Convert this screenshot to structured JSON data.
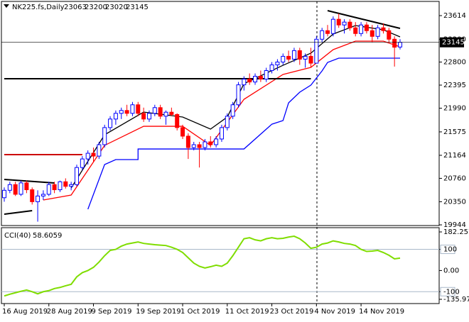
{
  "chart_data": [
    {
      "type": "candlestick",
      "title": "NK225.fs,Daily",
      "categories": [
        "16 Aug 2019",
        null,
        null,
        null,
        null,
        null,
        null,
        null,
        "28 Aug 2019",
        null,
        null,
        null,
        null,
        null,
        null,
        null,
        "9 Sep 2019",
        null,
        null,
        null,
        null,
        null,
        null,
        null,
        "19 Sep 2019",
        null,
        null,
        null,
        null,
        null,
        null,
        null,
        "1 Oct 2019",
        null,
        null,
        null,
        null,
        null,
        null,
        null,
        "11 Oct 2019",
        null,
        null,
        null,
        null,
        null,
        null,
        null,
        "23 Oct 2019",
        null,
        null,
        null,
        null,
        null,
        null,
        null,
        "4 Nov 2019",
        null,
        null,
        null,
        null,
        null,
        null,
        null,
        "14 Nov 2019",
        null,
        null,
        null,
        null,
        null,
        null,
        null
      ],
      "open": [
        20420,
        20550,
        20650,
        20480,
        20680,
        20560,
        20350,
        20450,
        20480,
        20650,
        20560,
        20700,
        20620,
        20650,
        20950,
        21100,
        21200,
        21150,
        21350,
        21650,
        21800,
        21900,
        21950,
        21900,
        22050,
        21900,
        21800,
        21900,
        22000,
        21850,
        21920,
        21880,
        21650,
        21500,
        21300,
        21350,
        21300,
        21400,
        21350,
        21450,
        21650,
        21850,
        22050,
        22400,
        22500,
        22450,
        22550,
        22500,
        22650,
        22750,
        22800,
        22900,
        22850,
        23000,
        22850,
        22900,
        22780,
        23200,
        23350,
        23300,
        23550,
        23450,
        23500,
        23400,
        23300,
        23450,
        23350,
        23250,
        23400,
        23350,
        23200,
        23063
      ],
      "high": [
        20600,
        20700,
        20700,
        20720,
        20720,
        20600,
        20550,
        20550,
        20700,
        20700,
        20720,
        20760,
        20700,
        21000,
        21150,
        21250,
        21300,
        21400,
        21700,
        21850,
        21950,
        22000,
        22050,
        22100,
        22100,
        22000,
        21950,
        22050,
        22050,
        21950,
        22000,
        21900,
        21700,
        21550,
        21400,
        21400,
        21450,
        21500,
        21500,
        21700,
        21900,
        22100,
        22450,
        22550,
        22600,
        22600,
        22650,
        22700,
        22800,
        22850,
        22950,
        23000,
        23050,
        23050,
        22950,
        23050,
        23250,
        23400,
        23450,
        23600,
        23650,
        23550,
        23550,
        23500,
        23500,
        23500,
        23450,
        23450,
        23480,
        23400,
        23250,
        23200
      ],
      "low": [
        20350,
        20500,
        20450,
        20450,
        20500,
        20300,
        20000,
        20380,
        20450,
        20500,
        20520,
        20580,
        20550,
        20620,
        20900,
        21000,
        21050,
        21100,
        21300,
        21600,
        21700,
        21800,
        21850,
        21850,
        21850,
        21750,
        21750,
        21850,
        21800,
        21700,
        21850,
        21600,
        21450,
        21100,
        21250,
        20950,
        21250,
        21300,
        21300,
        21400,
        21600,
        21800,
        22000,
        22300,
        22400,
        22400,
        22450,
        22450,
        22600,
        22650,
        22750,
        22800,
        22800,
        22750,
        22700,
        22700,
        22780,
        23150,
        23250,
        23250,
        23400,
        23300,
        23350,
        23250,
        23250,
        23300,
        23150,
        23200,
        23300,
        23150,
        22720,
        23020
      ],
      "close": [
        20550,
        20650,
        20480,
        20680,
        20560,
        20350,
        20450,
        20480,
        20650,
        20560,
        20700,
        20620,
        20650,
        20950,
        21100,
        21200,
        21150,
        21350,
        21650,
        21800,
        21900,
        21950,
        21900,
        22050,
        21900,
        21800,
        21900,
        22000,
        21850,
        21920,
        21880,
        21650,
        21500,
        21300,
        21350,
        21300,
        21400,
        21350,
        21450,
        21650,
        21850,
        22050,
        22400,
        22500,
        22450,
        22550,
        22500,
        22650,
        22750,
        22800,
        22900,
        22850,
        23000,
        22850,
        22900,
        22780,
        23200,
        23350,
        23300,
        23550,
        23450,
        23500,
        23400,
        23300,
        23450,
        23350,
        23250,
        23400,
        23350,
        23200,
        23060,
        23145
      ],
      "up_color": "#0000ff",
      "down_color": "#ff0000",
      "overlays": [
        {
          "color": "#000000",
          "x": [
            12,
            18,
            25,
            32,
            37,
            40,
            43,
            50,
            55,
            59,
            63,
            68,
            71
          ],
          "values": [
            20591,
            21524,
            21922,
            21835,
            21624,
            21835,
            22420,
            22743,
            22955,
            23291,
            23440,
            23365,
            23241
          ]
        },
        {
          "color": "#ff0000",
          "x": [
            7,
            12,
            18,
            25,
            32,
            37,
            43,
            50,
            55,
            59,
            63,
            68,
            71
          ],
          "values": [
            20380,
            20467,
            21338,
            21673,
            21673,
            21338,
            22146,
            22582,
            22706,
            23017,
            23166,
            23166,
            23067
          ]
        },
        {
          "color": "#0000ff",
          "x": [
            15,
            18,
            20,
            24,
            24,
            43,
            48,
            50,
            51,
            53,
            55,
            57,
            58,
            60,
            71
          ],
          "values": [
            20218,
            21002,
            21089,
            21089,
            21275,
            21275,
            21710,
            21773,
            22084,
            22271,
            22395,
            22644,
            22793,
            22868,
            22868
          ]
        }
      ],
      "trendlines": [
        {
          "color": "#000000",
          "x": [
            58,
            71
          ],
          "values": [
            23701,
            23390
          ]
        },
        {
          "color": "#000000",
          "x": [
            0,
            55
          ],
          "values": [
            22507,
            22507
          ]
        },
        {
          "color": "#cc0000",
          "x": [
            0,
            14
          ],
          "values": [
            21176,
            21176
          ]
        },
        {
          "color": "#000000",
          "x": [
            0,
            9
          ],
          "values": [
            20741,
            20678
          ]
        },
        {
          "color": "#000000",
          "x": [
            0,
            5
          ],
          "values": [
            20131,
            20193
          ]
        }
      ],
      "ylim": [
        19932,
        23863
      ],
      "yticks": [
        23614,
        23200,
        22800,
        22395,
        21990,
        21575,
        21164,
        20760,
        20350,
        19944
      ]
    },
    {
      "type": "line",
      "title": "CCI(40)",
      "color": "#7fdd00",
      "values": [
        -120,
        -112,
        -105,
        -98,
        -92,
        -100,
        -110,
        -100,
        -95,
        -85,
        -80,
        -72,
        -65,
        -30,
        -10,
        0,
        15,
        40,
        70,
        95,
        100,
        115,
        125,
        130,
        135,
        128,
        125,
        122,
        120,
        118,
        110,
        100,
        85,
        60,
        35,
        20,
        12,
        18,
        25,
        20,
        35,
        70,
        110,
        150,
        155,
        145,
        140,
        150,
        155,
        150,
        152,
        158,
        162,
        150,
        130,
        105,
        110,
        125,
        130,
        140,
        135,
        128,
        125,
        118,
        100,
        90,
        92,
        95,
        85,
        72,
        55,
        58.6059
      ],
      "levels": [
        100,
        -100
      ],
      "level_color": "#a9b8c9",
      "ylim": [
        -135.9714,
        182.2575
      ],
      "yticks": [
        182.2575,
        100,
        {
          "value": 0,
          "label": "0.00"
        },
        -100,
        -135.9714
      ]
    }
  ]
}
